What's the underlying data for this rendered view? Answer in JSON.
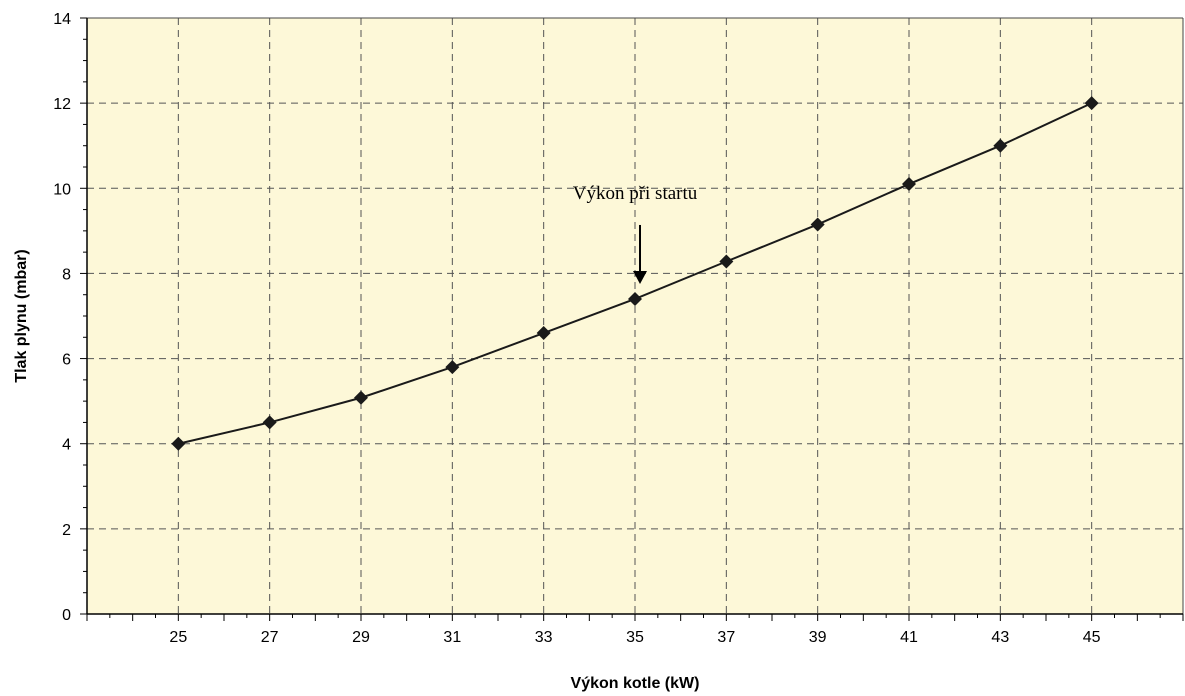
{
  "chart_data": {
    "type": "line",
    "x": [
      25,
      27,
      29,
      31,
      33,
      35,
      37,
      39,
      41,
      43,
      45
    ],
    "series": [
      {
        "values": [
          4.0,
          4.5,
          5.08,
          5.8,
          6.6,
          7.4,
          8.28,
          9.15,
          10.1,
          11.0,
          12.0
        ]
      }
    ],
    "xlabel": "Výkon kotle (kW)",
    "ylabel": "Tlak plynu (mbar)",
    "xlim": [
      23,
      47
    ],
    "ylim": [
      0,
      14
    ],
    "x_ticks": [
      "25",
      "27",
      "29",
      "31",
      "33",
      "35",
      "37",
      "39",
      "41",
      "43",
      "45"
    ],
    "y_ticks": [
      "0",
      "2",
      "4",
      "6",
      "8",
      "10",
      "12",
      "14"
    ],
    "grid": true,
    "grid_style": "dashed",
    "marker": "diamond",
    "colors": {
      "plot_background": "#fdf8d8",
      "line": "#1a1a1a",
      "grid": "#555555"
    },
    "annotations": [
      {
        "text": "Výkon při startu",
        "x": 35,
        "y": 7.4,
        "arrow": "down"
      }
    ]
  }
}
